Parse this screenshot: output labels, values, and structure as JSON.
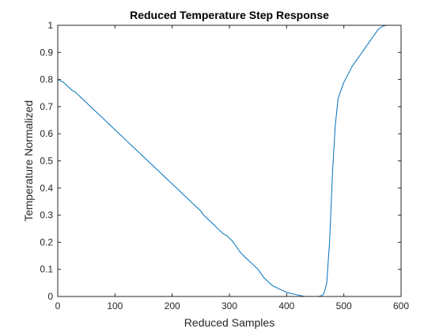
{
  "chart_data": {
    "type": "line",
    "title": "Reduced Temperature Step Response",
    "xlabel": "Reduced Samples",
    "ylabel": "Temperature Normalized",
    "xlim": [
      0,
      600
    ],
    "ylim": [
      0,
      1
    ],
    "xticks": [
      "0",
      "100",
      "200",
      "300",
      "400",
      "500",
      "600"
    ],
    "yticks": [
      "0",
      "0.1",
      "0.2",
      "0.3",
      "0.4",
      "0.5",
      "0.6",
      "0.7",
      "0.8",
      "0.9",
      "1"
    ],
    "grid": false,
    "legend": "none",
    "line_color": "#0072BD",
    "series": [
      {
        "x": [
          0,
          5,
          10,
          15,
          20,
          25,
          30,
          35,
          40,
          45,
          50,
          55,
          60,
          65,
          70,
          75,
          80,
          85,
          90,
          95,
          100,
          105,
          110,
          115,
          120,
          125,
          130,
          135,
          140,
          145,
          150,
          155,
          160,
          165,
          170,
          175,
          180,
          185,
          190,
          195,
          200,
          205,
          210,
          215,
          220,
          225,
          230,
          235,
          240,
          245,
          250,
          255,
          260,
          265,
          270,
          275,
          280,
          285,
          290,
          295,
          300,
          305,
          310,
          315,
          320,
          325,
          330,
          335,
          340,
          345,
          350,
          355,
          360,
          365,
          370,
          375,
          380,
          385,
          390,
          395,
          400,
          405,
          410,
          415,
          420,
          425,
          430,
          435,
          440,
          445,
          450,
          455,
          460,
          465,
          470,
          475,
          480,
          485,
          490,
          495,
          500,
          505,
          510,
          515,
          520,
          525,
          530,
          535,
          540,
          545,
          550,
          555,
          560,
          565,
          570,
          575,
          580,
          585
        ],
        "y": [
          0.8,
          0.795,
          0.79,
          0.78,
          0.77,
          0.76,
          0.755,
          0.745,
          0.735,
          0.725,
          0.715,
          0.705,
          0.695,
          0.685,
          0.675,
          0.665,
          0.655,
          0.645,
          0.635,
          0.625,
          0.615,
          0.605,
          0.595,
          0.585,
          0.575,
          0.565,
          0.555,
          0.545,
          0.535,
          0.525,
          0.515,
          0.505,
          0.495,
          0.485,
          0.475,
          0.465,
          0.455,
          0.445,
          0.435,
          0.425,
          0.415,
          0.405,
          0.395,
          0.385,
          0.375,
          0.365,
          0.355,
          0.345,
          0.335,
          0.325,
          0.315,
          0.3,
          0.29,
          0.28,
          0.27,
          0.26,
          0.25,
          0.24,
          0.23,
          0.225,
          0.215,
          0.205,
          0.19,
          0.175,
          0.16,
          0.15,
          0.14,
          0.13,
          0.12,
          0.11,
          0.1,
          0.085,
          0.07,
          0.06,
          0.05,
          0.04,
          0.035,
          0.03,
          0.025,
          0.02,
          0.015,
          0.012,
          0.01,
          0.008,
          0.005,
          0.003,
          0.001,
          0.0,
          0.0,
          0.0,
          0.0,
          0.0,
          0.002,
          0.01,
          0.05,
          0.2,
          0.45,
          0.63,
          0.73,
          0.76,
          0.79,
          0.81,
          0.83,
          0.85,
          0.865,
          0.88,
          0.895,
          0.91,
          0.925,
          0.94,
          0.955,
          0.97,
          0.985,
          0.993,
          0.998,
          1.0,
          1.0,
          1.0
        ]
      }
    ]
  }
}
